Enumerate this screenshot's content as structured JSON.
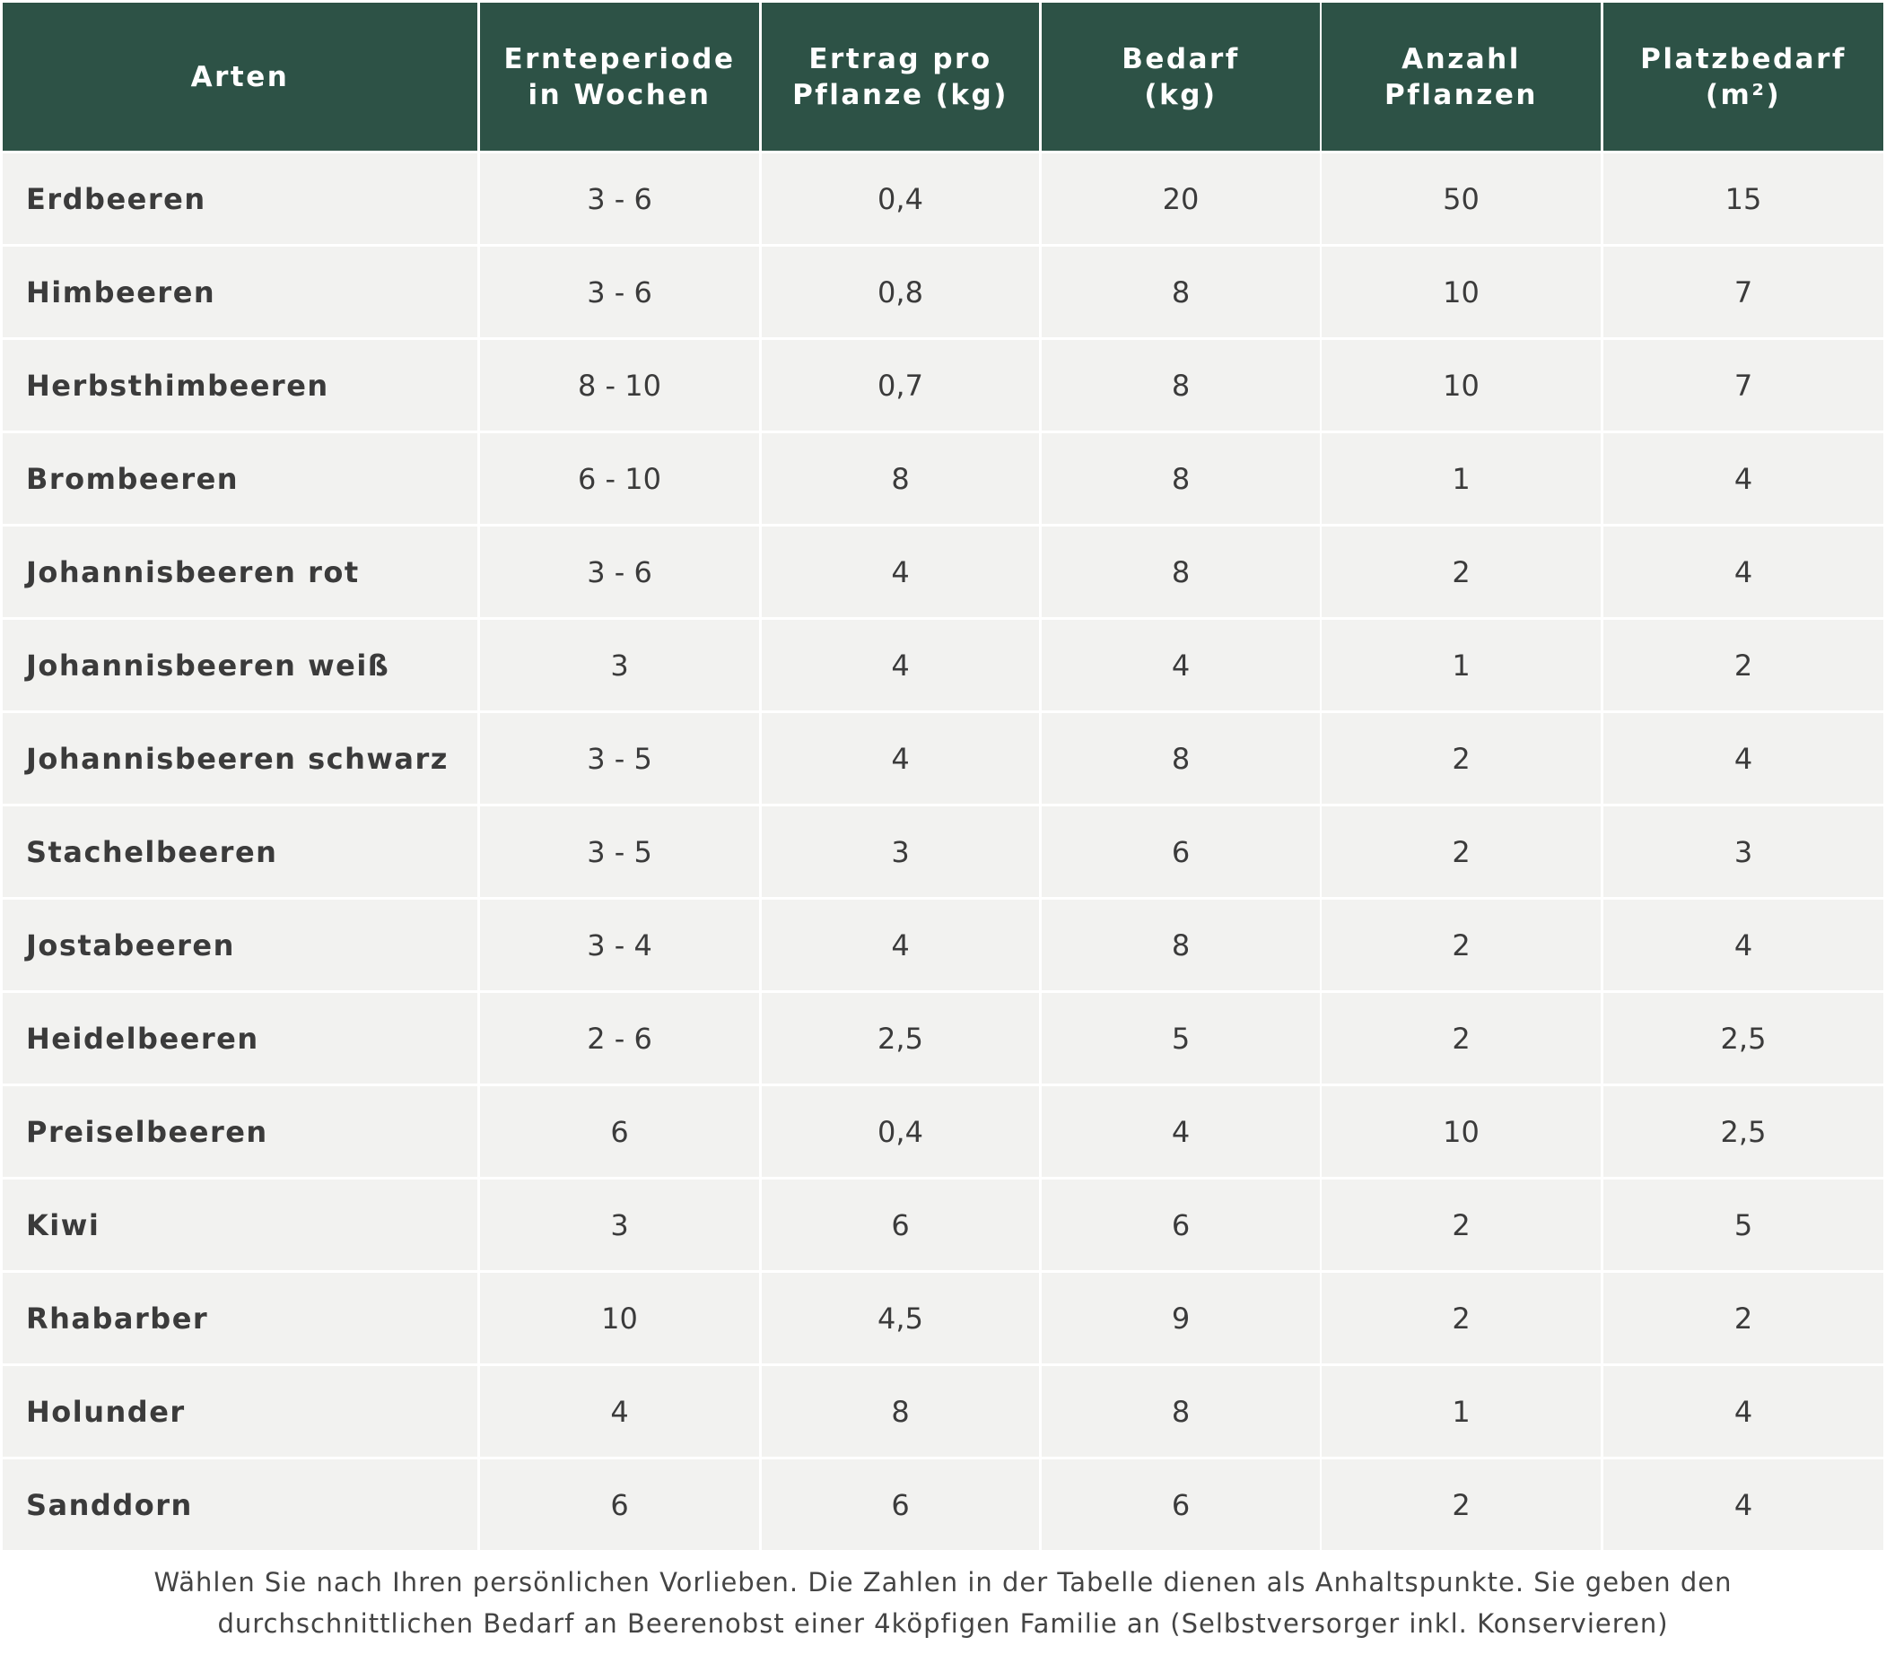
{
  "table": {
    "header": [
      [
        "Arten"
      ],
      [
        "Ernteperiode",
        "in Wochen"
      ],
      [
        "Ertrag pro",
        "Pflanze (kg)"
      ],
      [
        "Bedarf",
        "(kg)"
      ],
      [
        "Anzahl",
        "Pflanzen"
      ],
      [
        "Platzbedarf",
        "(m²)"
      ]
    ],
    "rows": [
      [
        "Erdbeeren",
        "3 - 6",
        "0,4",
        "20",
        "50",
        "15"
      ],
      [
        "Himbeeren",
        "3 - 6",
        "0,8",
        "8",
        "10",
        "7"
      ],
      [
        "Herbsthimbeeren",
        "8 - 10",
        "0,7",
        "8",
        "10",
        "7"
      ],
      [
        "Brombeeren",
        "6 - 10",
        "8",
        "8",
        "1",
        "4"
      ],
      [
        "Johannisbeeren rot",
        "3 - 6",
        "4",
        "8",
        "2",
        "4"
      ],
      [
        "Johannisbeeren weiß",
        "3",
        "4",
        "4",
        "1",
        "2"
      ],
      [
        "Johannisbeeren schwarz",
        "3 - 5",
        "4",
        "8",
        "2",
        "4"
      ],
      [
        "Stachelbeeren",
        "3 - 5",
        "3",
        "6",
        "2",
        "3"
      ],
      [
        "Jostabeeren",
        "3 - 4",
        "4",
        "8",
        "2",
        "4"
      ],
      [
        "Heidelbeeren",
        "2 - 6",
        "2,5",
        "5",
        "2",
        "2,5"
      ],
      [
        "Preiselbeeren",
        "6",
        "0,4",
        "4",
        "10",
        "2,5"
      ],
      [
        "Kiwi",
        "3",
        "6",
        "6",
        "2",
        "5"
      ],
      [
        "Rhabarber",
        "10",
        "4,5",
        "9",
        "2",
        "2"
      ],
      [
        "Holunder",
        "4",
        "8",
        "8",
        "1",
        "4"
      ],
      [
        "Sanddorn",
        "6",
        "6",
        "6",
        "2",
        "4"
      ]
    ]
  },
  "footnote": [
    "Wählen Sie nach Ihren persönlichen Vorlieben. Die Zahlen in der Tabelle dienen als Anhaltspunkte. Sie geben den",
    "durchschnittlichen Bedarf an Beerenobst einer 4köpfigen Familie an (Selbstversorger inkl. Konservieren)"
  ]
}
